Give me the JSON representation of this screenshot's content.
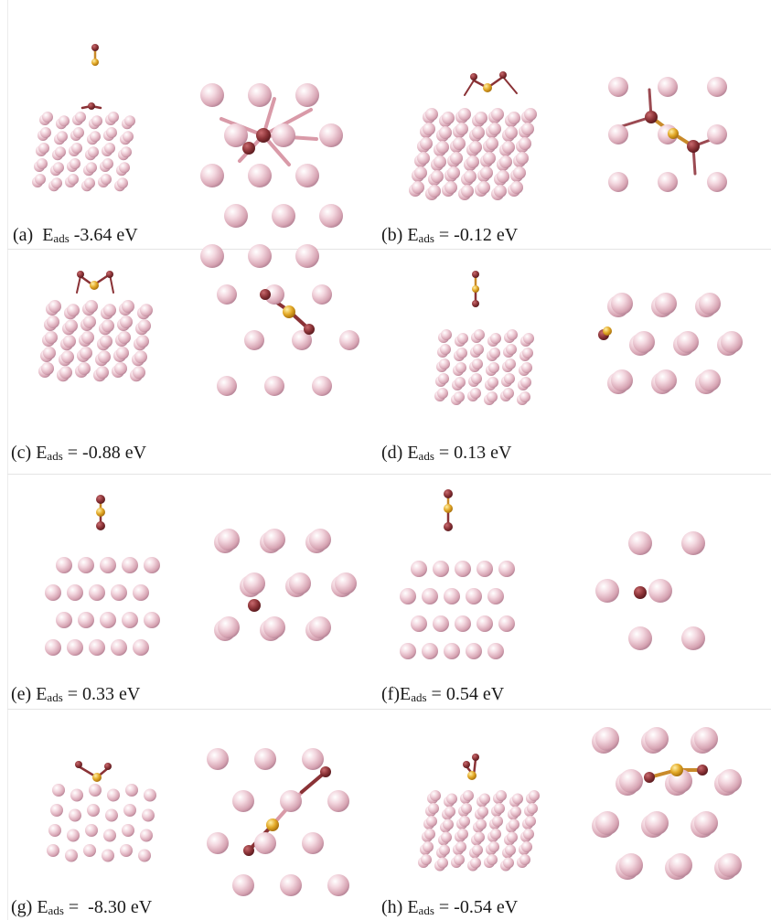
{
  "figure": {
    "colors": {
      "metal_atom": "#e6b9c5",
      "dark_atom": "#8a3236",
      "gold_atom": "#e3a927",
      "rule": "#e4e4e4"
    },
    "panels": [
      {
        "id": "a",
        "letter": "(a)",
        "label": "E",
        "sub": "ads",
        "value": " -3.64 eV",
        "gap": "  "
      },
      {
        "id": "b",
        "letter": "(b)",
        "label": "E",
        "sub": "ads",
        "value": " = -0.12 eV",
        "gap": " "
      },
      {
        "id": "c",
        "letter": "(c)",
        "label": "E",
        "sub": "ads",
        "value": " = -0.88 eV",
        "gap": " "
      },
      {
        "id": "d",
        "letter": "(d)",
        "label": "E",
        "sub": "ads",
        "value": " = 0.13 eV",
        "gap": " "
      },
      {
        "id": "e",
        "letter": "(e)",
        "label": "E",
        "sub": "ads",
        "value": " = 0.33 eV",
        "gap": " "
      },
      {
        "id": "f",
        "letter": "(f)",
        "label": "E",
        "sub": "ads",
        "value": " = 0.54 eV",
        "gap": ""
      },
      {
        "id": "g",
        "letter": "(g)",
        "label": "E",
        "sub": "ads",
        "value": " =  -8.30 eV",
        "gap": " "
      },
      {
        "id": "h",
        "letter": "(h)",
        "label": "E",
        "sub": "ads",
        "value": " = -0.54 eV",
        "gap": " "
      }
    ]
  }
}
